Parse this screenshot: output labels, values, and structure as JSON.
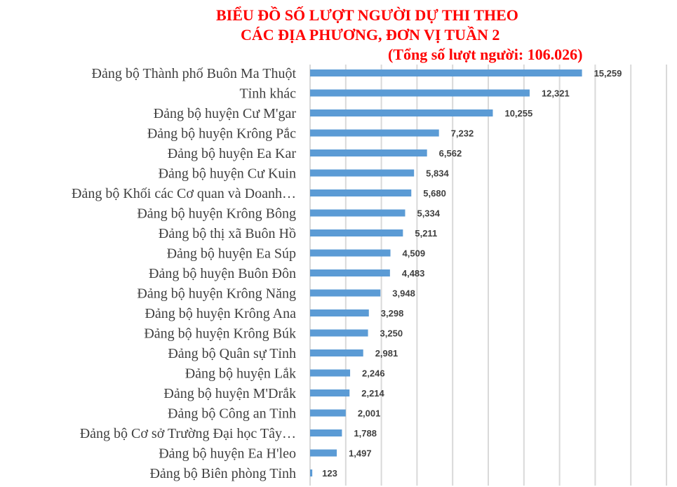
{
  "chart_data": {
    "type": "bar",
    "orientation": "horizontal",
    "title": [
      "BIỂU ĐỒ SỐ LƯỢT NGƯỜI DỰ THI THEO",
      "CÁC ĐỊA PHƯƠNG, ĐƠN VỊ TUẦN 2",
      "(Tổng số lượt người: 106.026)"
    ],
    "categories": [
      "Đảng bộ Thành phố Buôn Ma Thuột",
      "Tỉnh khác",
      "Đảng bộ huyện Cư M'gar",
      "Đảng bộ huyện Krông Pắc",
      "Đảng bộ huyện Ea Kar",
      "Đảng bộ huyện Cư Kuin",
      "Đảng bộ Khối các Cơ quan và Doanh…",
      "Đảng bộ huyện Krông Bông",
      "Đảng bộ thị xã Buôn Hồ",
      "Đảng bộ huyện Ea Súp",
      "Đảng bộ huyện Buôn Đôn",
      "Đảng bộ huyện Krông Năng",
      "Đảng bộ huyện Krông Ana",
      "Đảng bộ huyện Krông Búk",
      "Đảng bộ Quân sự Tỉnh",
      "Đảng bộ huyện Lắk",
      "Đảng bộ huyện M'Drắk",
      "Đảng bộ Công an Tỉnh",
      "Đảng bộ Cơ sở Trường Đại học Tây…",
      "Đảng bộ huyện Ea H'leo",
      "Đảng bộ Biên phòng Tỉnh"
    ],
    "values": [
      15259,
      12321,
      10255,
      7232,
      6562,
      5834,
      5680,
      5334,
      5211,
      4509,
      4483,
      3948,
      3298,
      3250,
      2981,
      2246,
      2214,
      2001,
      1788,
      1497,
      123
    ],
    "value_labels": [
      "15,259",
      "12,321",
      "10,255",
      "7,232",
      "6,562",
      "5,834",
      "5,680",
      "5,334",
      "5,211",
      "4,509",
      "4,483",
      "3,948",
      "3,298",
      "3,250",
      "2,981",
      "2,246",
      "2,214",
      "2,001",
      "1,788",
      "1,497",
      "123"
    ],
    "xlim": [
      0,
      20000
    ],
    "x_gridline_step": 2000,
    "grid": true,
    "x_tick_labels_shown": false,
    "bar_color": "#5b9bd5",
    "title_color": "#ff0000",
    "gridline_color": "#d9d9d9"
  }
}
